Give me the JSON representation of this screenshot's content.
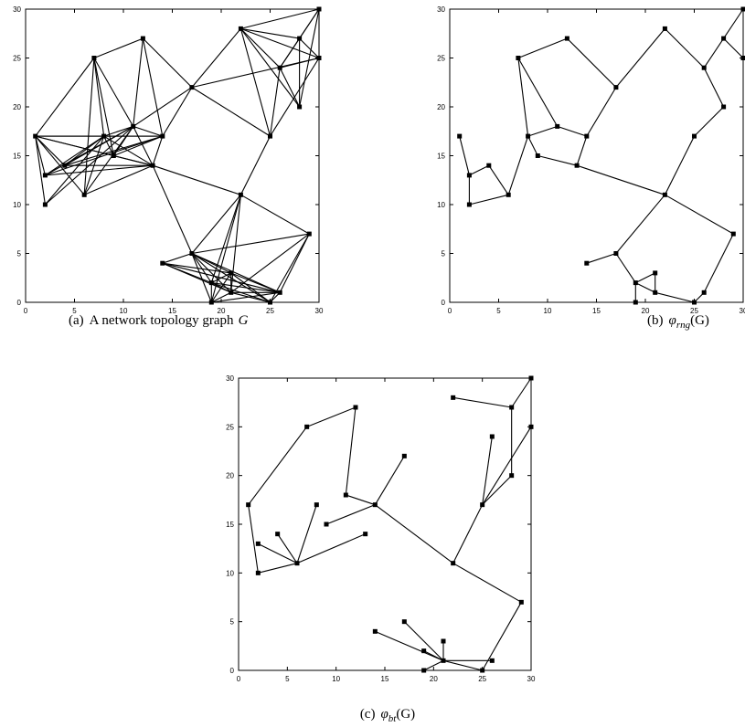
{
  "chart_data": [
    {
      "type": "graph",
      "caption": {
        "label": "(a)",
        "text": "A network topology graph",
        "symbol": "G"
      },
      "xlim": [
        0,
        30
      ],
      "ylim": [
        0,
        30
      ],
      "xticks": [
        0,
        5,
        10,
        15,
        20,
        25,
        30
      ],
      "yticks": [
        0,
        5,
        10,
        15,
        20,
        25,
        30
      ],
      "nodes": {
        "x": [
          30,
          28,
          22,
          26,
          30,
          28,
          25,
          12,
          7,
          11,
          14,
          17,
          1,
          8,
          9,
          4,
          13,
          2,
          2,
          6,
          22,
          29,
          17,
          14,
          21,
          19,
          21,
          26,
          19,
          25
        ],
        "y": [
          30,
          27,
          28,
          24,
          25,
          20,
          17,
          27,
          25,
          18,
          17,
          22,
          17,
          17,
          15,
          14,
          14,
          13,
          10,
          11,
          11,
          7,
          5,
          4,
          3,
          2,
          1,
          1,
          0,
          0
        ]
      },
      "edges": [
        [
          12,
          8
        ],
        [
          12,
          13
        ],
        [
          12,
          10
        ],
        [
          12,
          17
        ],
        [
          12,
          18
        ],
        [
          12,
          19
        ],
        [
          12,
          15
        ],
        [
          12,
          14
        ],
        [
          12,
          16
        ],
        [
          8,
          7
        ],
        [
          8,
          13
        ],
        [
          8,
          9
        ],
        [
          8,
          14
        ],
        [
          8,
          19
        ],
        [
          7,
          9
        ],
        [
          7,
          11
        ],
        [
          7,
          10
        ],
        [
          11,
          9
        ],
        [
          11,
          10
        ],
        [
          11,
          2
        ],
        [
          11,
          4
        ],
        [
          11,
          6
        ],
        [
          2,
          3
        ],
        [
          2,
          6
        ],
        [
          2,
          1
        ],
        [
          2,
          0
        ],
        [
          2,
          4
        ],
        [
          2,
          5
        ],
        [
          0,
          4
        ],
        [
          0,
          1
        ],
        [
          0,
          3
        ],
        [
          0,
          5
        ],
        [
          1,
          3
        ],
        [
          1,
          4
        ],
        [
          1,
          5
        ],
        [
          3,
          4
        ],
        [
          3,
          5
        ],
        [
          3,
          6
        ],
        [
          4,
          6
        ],
        [
          9,
          13
        ],
        [
          9,
          14
        ],
        [
          9,
          16
        ],
        [
          9,
          10
        ],
        [
          9,
          15
        ],
        [
          9,
          17
        ],
        [
          9,
          19
        ],
        [
          9,
          18
        ],
        [
          13,
          14
        ],
        [
          13,
          15
        ],
        [
          13,
          16
        ],
        [
          13,
          17
        ],
        [
          13,
          18
        ],
        [
          13,
          19
        ],
        [
          13,
          10
        ],
        [
          10,
          14
        ],
        [
          10,
          16
        ],
        [
          10,
          15
        ],
        [
          10,
          17
        ],
        [
          16,
          14
        ],
        [
          16,
          15
        ],
        [
          16,
          17
        ],
        [
          16,
          19
        ],
        [
          16,
          20
        ],
        [
          16,
          22
        ],
        [
          20,
          6
        ],
        [
          20,
          22
        ],
        [
          20,
          28
        ],
        [
          20,
          25
        ],
        [
          20,
          21
        ],
        [
          20,
          26
        ],
        [
          21,
          22
        ],
        [
          21,
          26
        ],
        [
          21,
          27
        ],
        [
          21,
          29
        ],
        [
          22,
          23
        ],
        [
          22,
          24
        ],
        [
          22,
          25
        ],
        [
          22,
          26
        ],
        [
          22,
          27
        ],
        [
          22,
          28
        ],
        [
          22,
          29
        ],
        [
          23,
          25
        ],
        [
          23,
          26
        ],
        [
          23,
          24
        ],
        [
          23,
          27
        ],
        [
          24,
          25
        ],
        [
          24,
          26
        ],
        [
          24,
          27
        ],
        [
          24,
          28
        ],
        [
          24,
          29
        ],
        [
          25,
          26
        ],
        [
          25,
          27
        ],
        [
          25,
          28
        ],
        [
          25,
          29
        ],
        [
          26,
          27
        ],
        [
          26,
          28
        ],
        [
          26,
          29
        ],
        [
          27,
          29
        ],
        [
          27,
          28
        ]
      ]
    },
    {
      "type": "graph",
      "caption": {
        "label": "(b)",
        "symbol": "φ",
        "subscript": "rng",
        "argument": "(G)"
      },
      "xlim": [
        0,
        30
      ],
      "ylim": [
        0,
        30
      ],
      "xticks": [
        0,
        5,
        10,
        15,
        20,
        25,
        30
      ],
      "yticks": [
        0,
        5,
        10,
        15,
        20,
        25,
        30
      ],
      "nodes": {
        "x": [
          30,
          28,
          22,
          26,
          30,
          28,
          25,
          12,
          7,
          11,
          14,
          17,
          1,
          8,
          9,
          4,
          13,
          2,
          2,
          6,
          22,
          29,
          17,
          14,
          21,
          19,
          21,
          26,
          19,
          25
        ],
        "y": [
          30,
          27,
          28,
          24,
          25,
          20,
          17,
          27,
          25,
          18,
          17,
          22,
          17,
          17,
          15,
          14,
          14,
          13,
          10,
          11,
          11,
          7,
          5,
          4,
          3,
          2,
          1,
          1,
          0,
          0
        ]
      },
      "edges": [
        [
          7,
          8
        ],
        [
          7,
          11
        ],
        [
          11,
          2
        ],
        [
          2,
          3
        ],
        [
          3,
          1
        ],
        [
          1,
          0
        ],
        [
          1,
          4
        ],
        [
          3,
          5
        ],
        [
          5,
          6
        ],
        [
          6,
          20
        ],
        [
          11,
          10
        ],
        [
          10,
          16
        ],
        [
          10,
          9
        ],
        [
          9,
          13
        ],
        [
          8,
          13
        ],
        [
          8,
          9
        ],
        [
          13,
          14
        ],
        [
          13,
          19
        ],
        [
          15,
          19
        ],
        [
          15,
          17
        ],
        [
          12,
          17
        ],
        [
          17,
          18
        ],
        [
          18,
          19
        ],
        [
          14,
          16
        ],
        [
          16,
          20
        ],
        [
          20,
          22
        ],
        [
          20,
          21
        ],
        [
          21,
          27
        ],
        [
          27,
          29
        ],
        [
          29,
          26
        ],
        [
          26,
          24
        ],
        [
          24,
          25
        ],
        [
          25,
          28
        ],
        [
          25,
          26
        ],
        [
          22,
          25
        ],
        [
          23,
          22
        ]
      ]
    },
    {
      "type": "graph",
      "caption": {
        "label": "(c)",
        "symbol": "φ",
        "subscript": "bt",
        "argument": "(G)"
      },
      "xlim": [
        0,
        30
      ],
      "ylim": [
        0,
        30
      ],
      "xticks": [
        0,
        5,
        10,
        15,
        20,
        25,
        30
      ],
      "yticks": [
        0,
        5,
        10,
        15,
        20,
        25,
        30
      ],
      "nodes": {
        "x": [
          30,
          28,
          22,
          26,
          30,
          28,
          25,
          12,
          7,
          11,
          14,
          17,
          1,
          8,
          9,
          4,
          13,
          2,
          2,
          6,
          22,
          29,
          17,
          14,
          21,
          19,
          21,
          26,
          19,
          25
        ],
        "y": [
          30,
          27,
          28,
          24,
          25,
          20,
          17,
          27,
          25,
          18,
          17,
          22,
          17,
          17,
          15,
          14,
          14,
          13,
          10,
          11,
          11,
          7,
          5,
          4,
          3,
          2,
          1,
          1,
          0,
          0
        ]
      },
      "edges": [
        [
          0,
          1
        ],
        [
          1,
          2
        ],
        [
          1,
          5
        ],
        [
          4,
          6
        ],
        [
          3,
          6
        ],
        [
          5,
          6
        ],
        [
          6,
          20
        ],
        [
          20,
          10
        ],
        [
          20,
          21
        ],
        [
          21,
          29
        ],
        [
          10,
          11
        ],
        [
          10,
          9
        ],
        [
          9,
          7
        ],
        [
          7,
          8
        ],
        [
          8,
          12
        ],
        [
          12,
          18
        ],
        [
          18,
          19
        ],
        [
          17,
          19
        ],
        [
          15,
          19
        ],
        [
          13,
          19
        ],
        [
          16,
          19
        ],
        [
          14,
          10
        ],
        [
          29,
          26
        ],
        [
          27,
          26
        ],
        [
          26,
          24
        ],
        [
          26,
          25
        ],
        [
          26,
          28
        ],
        [
          26,
          22
        ],
        [
          26,
          23
        ]
      ]
    }
  ]
}
